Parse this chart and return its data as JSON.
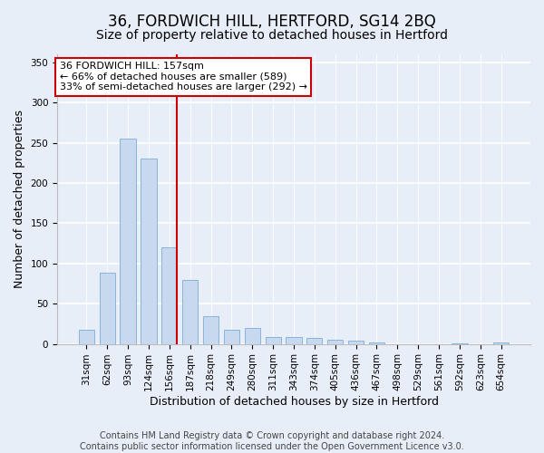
{
  "title": "36, FORDWICH HILL, HERTFORD, SG14 2BQ",
  "subtitle": "Size of property relative to detached houses in Hertford",
  "xlabel": "Distribution of detached houses by size in Hertford",
  "ylabel": "Number of detached properties",
  "categories": [
    "31sqm",
    "62sqm",
    "93sqm",
    "124sqm",
    "156sqm",
    "187sqm",
    "218sqm",
    "249sqm",
    "280sqm",
    "311sqm",
    "343sqm",
    "374sqm",
    "405sqm",
    "436sqm",
    "467sqm",
    "498sqm",
    "529sqm",
    "561sqm",
    "592sqm",
    "623sqm",
    "654sqm"
  ],
  "values": [
    18,
    88,
    255,
    230,
    120,
    79,
    35,
    18,
    20,
    8,
    9,
    7,
    5,
    4,
    2,
    0,
    0,
    0,
    1,
    0,
    2
  ],
  "bar_color": "#c8d9ef",
  "bar_edge_color": "#7aaed6",
  "vline_color": "#cc0000",
  "annotation_text": "36 FORDWICH HILL: 157sqm\n← 66% of detached houses are smaller (589)\n33% of semi-detached houses are larger (292) →",
  "annotation_box_color": "#ffffff",
  "annotation_box_edge_color": "#cc0000",
  "footer_text": "Contains HM Land Registry data © Crown copyright and database right 2024.\nContains public sector information licensed under the Open Government Licence v3.0.",
  "ylim": [
    0,
    360
  ],
  "yticks": [
    0,
    50,
    100,
    150,
    200,
    250,
    300,
    350
  ],
  "background_color": "#e8eef8",
  "plot_bg_color": "#e8eef8",
  "grid_color": "#ffffff",
  "title_fontsize": 12,
  "subtitle_fontsize": 10,
  "axis_label_fontsize": 9,
  "tick_fontsize": 7.5,
  "footer_fontsize": 7,
  "annotation_fontsize": 8,
  "bar_width": 0.75
}
